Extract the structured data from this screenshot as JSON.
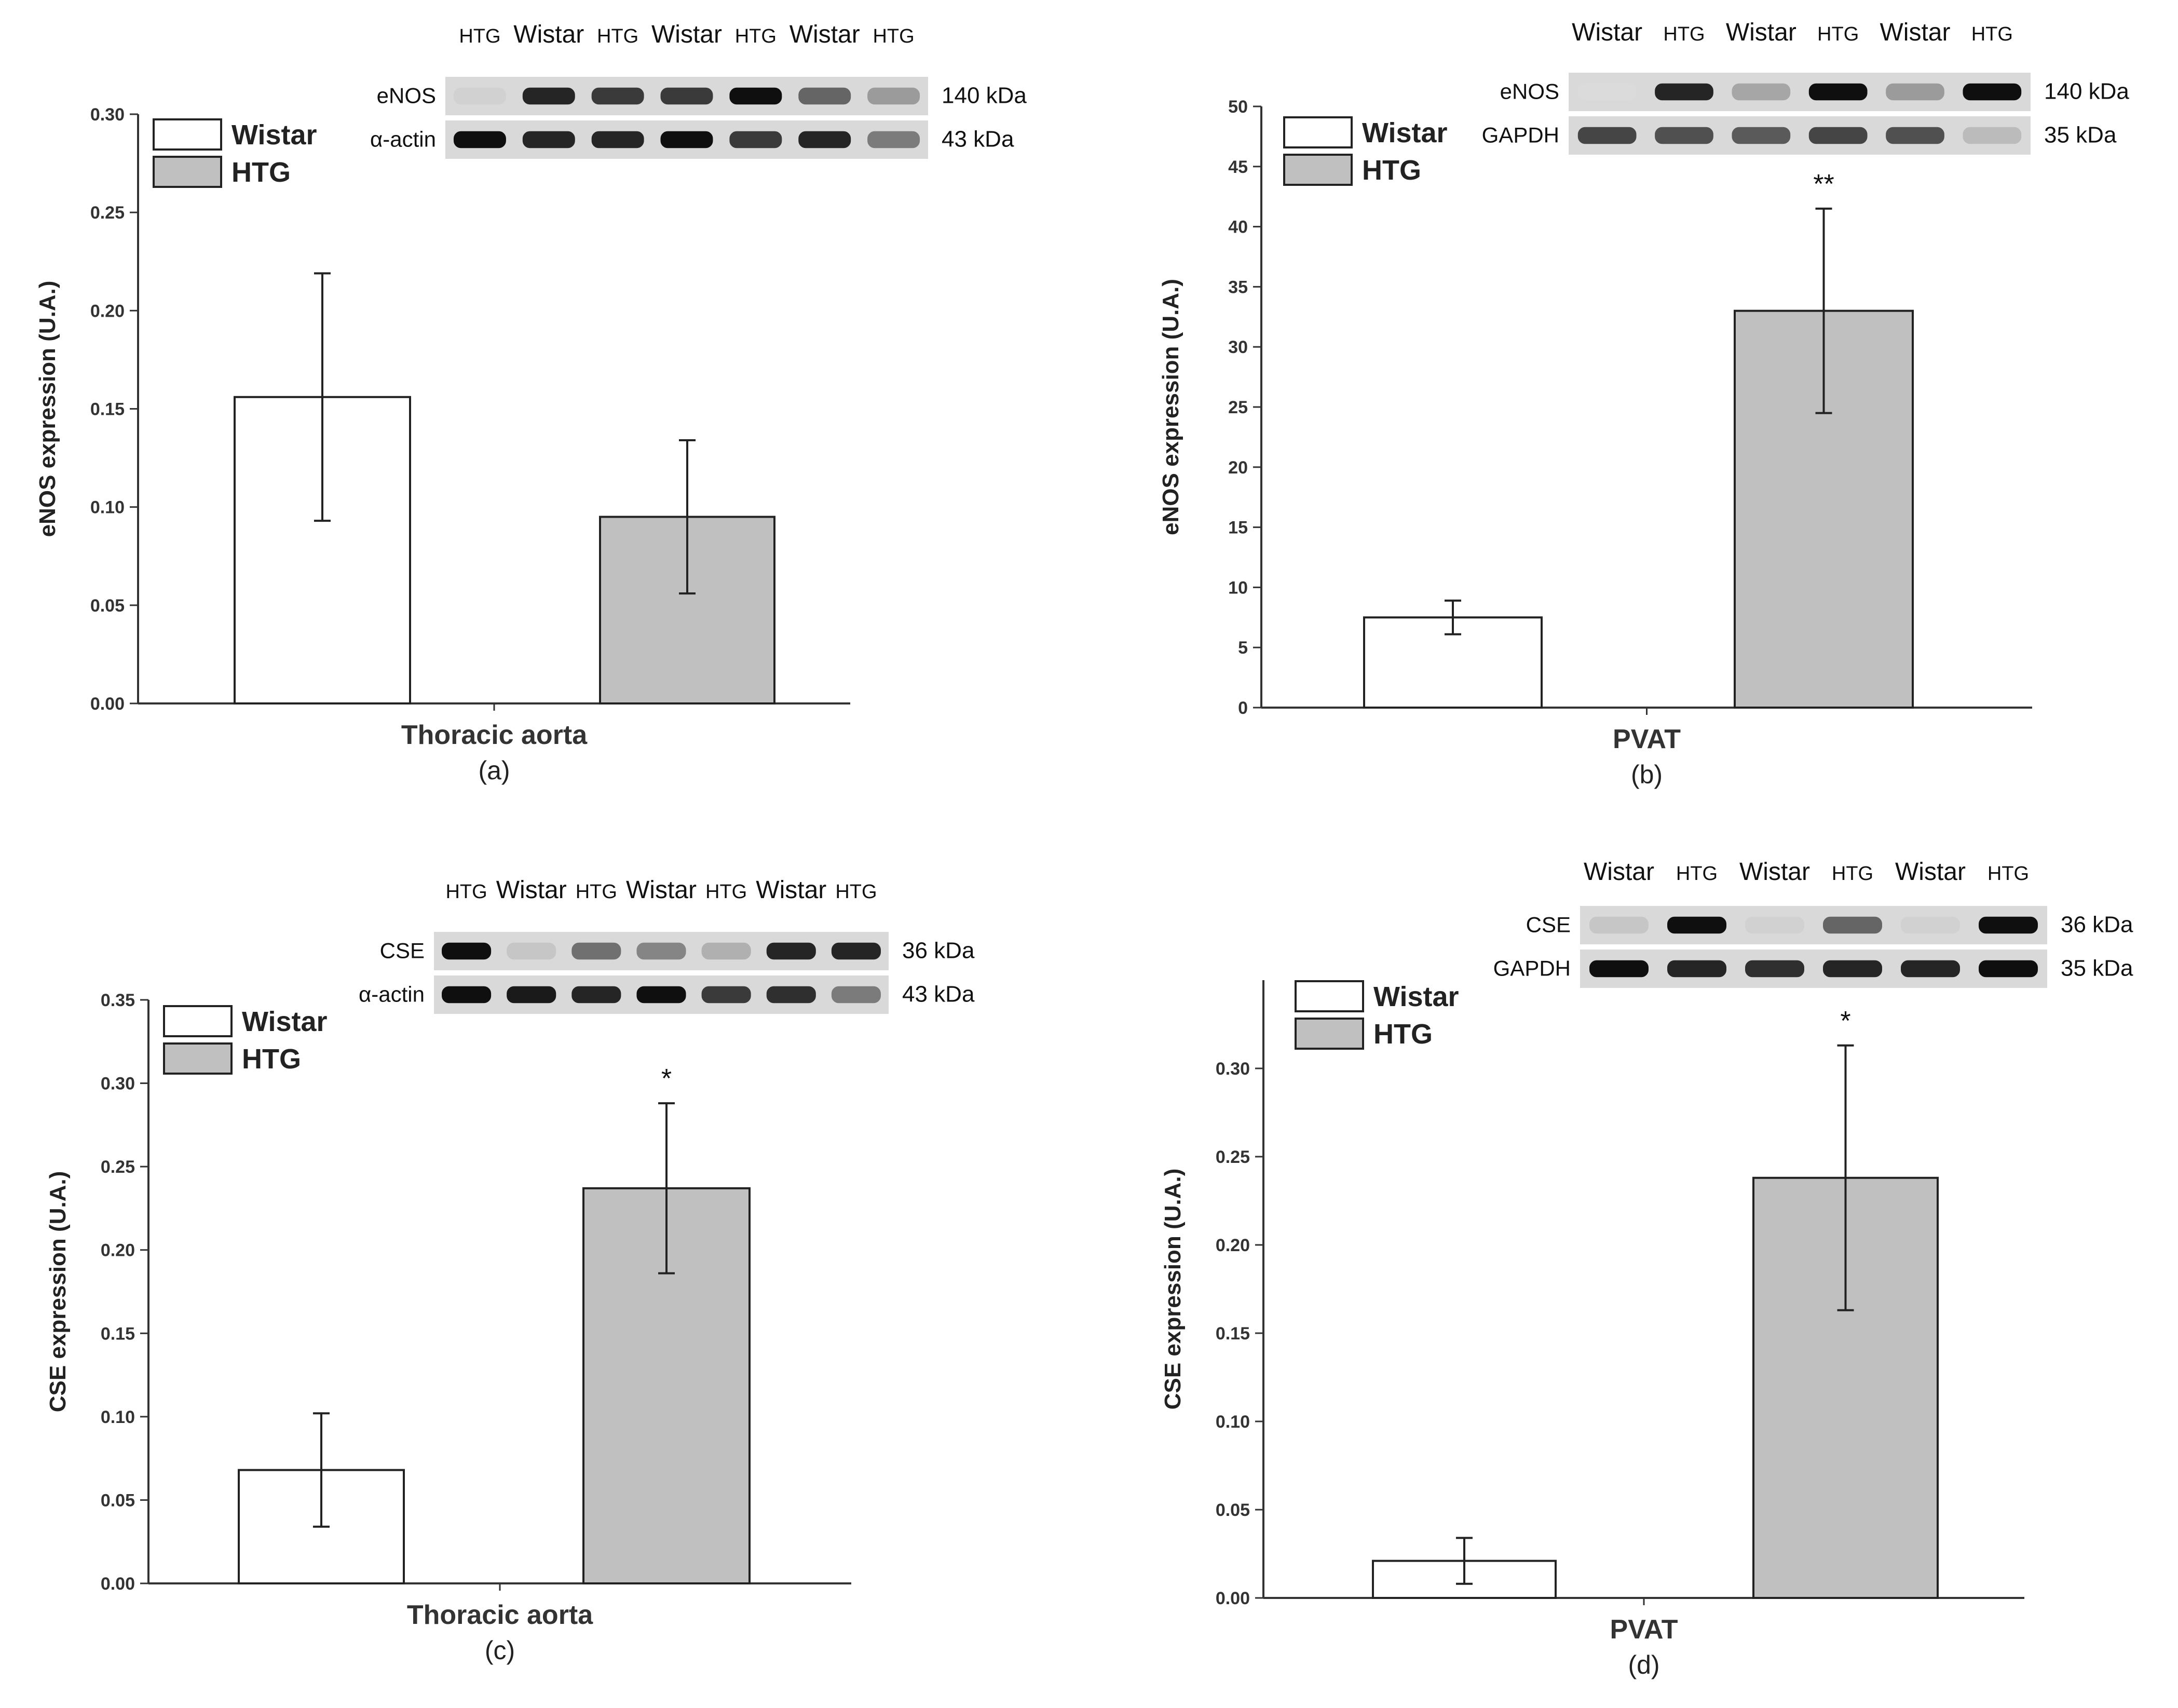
{
  "chart_data": [
    {
      "type": "bar",
      "panel_label": "(a)",
      "title": "",
      "xlabel": "Thoracic aorta",
      "ylabel": "eNOS expression (U.A.)",
      "ylim": [
        0,
        0.3
      ],
      "yticks": [
        "0.00",
        "0.05",
        "0.10",
        "0.15",
        "0.20",
        "0.25",
        "0.30"
      ],
      "categories": [
        "Wistar",
        "HTG"
      ],
      "values": [
        0.156,
        0.095
      ],
      "errors": [
        0.063,
        0.039
      ],
      "significance": [
        "",
        ""
      ],
      "colors": [
        "#ffffff",
        "#c0c0c0"
      ],
      "legend": [
        "Wistar",
        "HTG"
      ],
      "blot": {
        "lanes": [
          "HTG",
          "Wistar",
          "HTG",
          "Wistar",
          "HTG",
          "Wistar",
          "HTG"
        ],
        "rows": [
          {
            "protein": "eNOS",
            "kda": "140 kDa",
            "intensity": [
              0.1,
              0.9,
              0.8,
              0.8,
              1.0,
              0.6,
              0.35
            ]
          },
          {
            "protein": "α-actin",
            "kda": "43 kDa",
            "intensity": [
              1.0,
              0.9,
              0.9,
              1.0,
              0.8,
              0.9,
              0.5
            ]
          }
        ]
      }
    },
    {
      "type": "bar",
      "panel_label": "(b)",
      "title": "",
      "xlabel": "PVAT",
      "ylabel": "eNOS expression (U.A.)",
      "ylim": [
        0,
        50
      ],
      "yticks": [
        "0",
        "5",
        "10",
        "15",
        "20",
        "25",
        "30",
        "35",
        "40",
        "45",
        "50"
      ],
      "categories": [
        "Wistar",
        "HTG"
      ],
      "values": [
        7.5,
        33
      ],
      "errors": [
        1.4,
        8.5
      ],
      "significance": [
        "",
        "**"
      ],
      "colors": [
        "#ffffff",
        "#c0c0c0"
      ],
      "legend": [
        "Wistar",
        "HTG"
      ],
      "blot": {
        "lanes": [
          "Wistar",
          "HTG",
          "Wistar",
          "HTG",
          "Wistar",
          "HTG"
        ],
        "rows": [
          {
            "protein": "eNOS",
            "kda": "140 kDa",
            "intensity": [
              0.05,
              0.9,
              0.3,
              1.0,
              0.35,
              1.0
            ]
          },
          {
            "protein": "GAPDH",
            "kda": "35 kDa",
            "intensity": [
              0.75,
              0.7,
              0.65,
              0.75,
              0.7,
              0.2
            ]
          }
        ]
      }
    },
    {
      "type": "bar",
      "panel_label": "(c)",
      "title": "",
      "xlabel": "Thoracic aorta",
      "ylabel": "CSE expression (U.A.)",
      "ylim": [
        0,
        0.35
      ],
      "yticks": [
        "0.00",
        "0.05",
        "0.10",
        "0.15",
        "0.20",
        "0.25",
        "0.30",
        "0.35"
      ],
      "categories": [
        "Wistar",
        "HTG"
      ],
      "values": [
        0.068,
        0.237
      ],
      "errors": [
        0.034,
        0.051
      ],
      "significance": [
        "",
        "*"
      ],
      "colors": [
        "#ffffff",
        "#c0c0c0"
      ],
      "legend": [
        "Wistar",
        "HTG"
      ],
      "blot": {
        "lanes": [
          "HTG",
          "Wistar",
          "HTG",
          "Wistar",
          "HTG",
          "Wistar",
          "HTG"
        ],
        "rows": [
          {
            "protein": "CSE",
            "kda": "36 kDa",
            "intensity": [
              1.0,
              0.15,
              0.55,
              0.45,
              0.25,
              0.9,
              0.9
            ]
          },
          {
            "protein": "α-actin",
            "kda": "43 kDa",
            "intensity": [
              1.0,
              0.95,
              0.9,
              1.0,
              0.8,
              0.85,
              0.5
            ]
          }
        ]
      }
    },
    {
      "type": "bar",
      "panel_label": "(d)",
      "title": "",
      "xlabel": "PVAT",
      "ylabel": "CSE expression (U.A.)",
      "ylim": [
        0,
        0.35
      ],
      "yticks": [
        "0.00",
        "0.05",
        "0.10",
        "0.15",
        "0.20",
        "0.25",
        "0.30"
      ],
      "categories": [
        "Wistar",
        "HTG"
      ],
      "values": [
        0.021,
        0.238
      ],
      "errors": [
        0.013,
        0.075
      ],
      "significance": [
        "",
        "*"
      ],
      "colors": [
        "#ffffff",
        "#c0c0c0"
      ],
      "legend": [
        "Wistar",
        "HTG"
      ],
      "blot": {
        "lanes": [
          "Wistar",
          "HTG",
          "Wistar",
          "HTG",
          "Wistar",
          "HTG"
        ],
        "rows": [
          {
            "protein": "CSE",
            "kda": "36 kDa",
            "intensity": [
              0.15,
              1.0,
              0.1,
              0.6,
              0.1,
              1.0
            ]
          },
          {
            "protein": "GAPDH",
            "kda": "35 kDa",
            "intensity": [
              1.0,
              0.9,
              0.85,
              0.9,
              0.9,
              1.0
            ]
          }
        ]
      }
    }
  ]
}
